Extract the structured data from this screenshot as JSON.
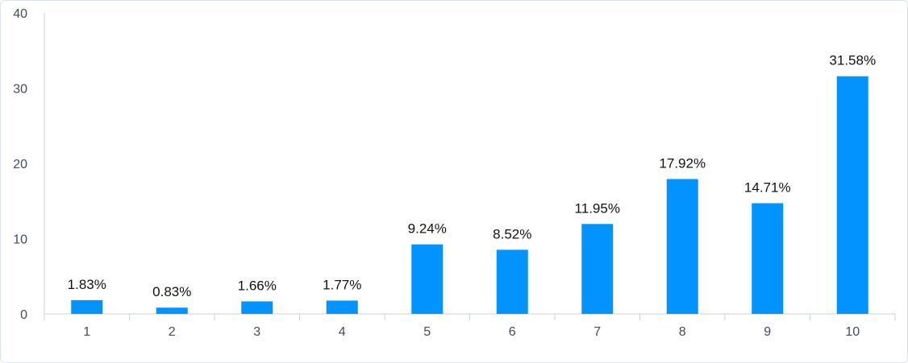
{
  "chart_data": {
    "type": "bar",
    "categories": [
      "1",
      "2",
      "3",
      "4",
      "5",
      "6",
      "7",
      "8",
      "9",
      "10"
    ],
    "values": [
      1.83,
      0.83,
      1.66,
      1.77,
      9.24,
      8.52,
      11.95,
      17.92,
      14.71,
      31.58
    ],
    "data_labels": [
      "1.83%",
      "0.83%",
      "1.66%",
      "1.77%",
      "9.24%",
      "8.52%",
      "11.95%",
      "17.92%",
      "14.71%",
      "31.58%"
    ],
    "y_ticks": [
      "0",
      "10",
      "20",
      "30",
      "40"
    ],
    "ylim": [
      0,
      40
    ],
    "grid": false,
    "bar_color": "#0393ff",
    "axis_color": "#c9d3de"
  }
}
